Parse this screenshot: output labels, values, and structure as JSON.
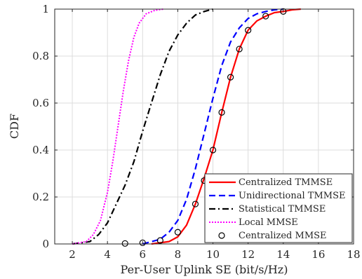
{
  "chart_data": {
    "type": "line",
    "xlabel": "Per-User Uplink SE (bit/s/Hz)",
    "ylabel": "CDF",
    "xlim": [
      1,
      18
    ],
    "ylim": [
      0,
      1
    ],
    "xticks": [
      2,
      4,
      6,
      8,
      10,
      12,
      14,
      16,
      18
    ],
    "yticks": [
      0,
      0.2,
      0.4,
      0.6,
      0.8,
      1
    ],
    "ytick_labels": [
      "0",
      "0.2",
      "0.4",
      "0.6",
      "0.8",
      "1"
    ],
    "grid": true,
    "legend_position": "bottom-right",
    "series": [
      {
        "name": "Centralized TMMSE",
        "color": "#ff0000",
        "dash": "solid",
        "points": [
          [
            6.5,
            0
          ],
          [
            7.5,
            0.01
          ],
          [
            8.0,
            0.03
          ],
          [
            8.5,
            0.08
          ],
          [
            9.0,
            0.17
          ],
          [
            9.5,
            0.28
          ],
          [
            10.0,
            0.4
          ],
          [
            10.5,
            0.56
          ],
          [
            11.0,
            0.71
          ],
          [
            11.5,
            0.83
          ],
          [
            12.0,
            0.91
          ],
          [
            12.5,
            0.95
          ],
          [
            13.0,
            0.97
          ],
          [
            13.5,
            0.985
          ],
          [
            14.0,
            0.99
          ],
          [
            14.5,
            0.997
          ],
          [
            15.0,
            1.0
          ]
        ]
      },
      {
        "name": "Unidirectional TMMSE",
        "color": "#0000ff",
        "dash": "dashed",
        "points": [
          [
            6.0,
            0
          ],
          [
            7.0,
            0.02
          ],
          [
            7.5,
            0.05
          ],
          [
            8.0,
            0.1
          ],
          [
            8.5,
            0.19
          ],
          [
            9.0,
            0.32
          ],
          [
            9.5,
            0.47
          ],
          [
            10.0,
            0.62
          ],
          [
            10.5,
            0.76
          ],
          [
            11.0,
            0.86
          ],
          [
            11.5,
            0.92
          ],
          [
            12.0,
            0.96
          ],
          [
            12.5,
            0.98
          ],
          [
            13.0,
            0.99
          ],
          [
            13.5,
            0.997
          ],
          [
            14.0,
            1.0
          ]
        ]
      },
      {
        "name": "Statistical TMMSE",
        "color": "#000000",
        "dash": "dashdot",
        "points": [
          [
            2.0,
            0
          ],
          [
            3.0,
            0.01
          ],
          [
            3.5,
            0.04
          ],
          [
            4.0,
            0.09
          ],
          [
            4.5,
            0.17
          ],
          [
            5.0,
            0.25
          ],
          [
            5.5,
            0.35
          ],
          [
            6.0,
            0.48
          ],
          [
            6.5,
            0.6
          ],
          [
            7.0,
            0.72
          ],
          [
            7.5,
            0.82
          ],
          [
            8.0,
            0.89
          ],
          [
            8.5,
            0.94
          ],
          [
            9.0,
            0.975
          ],
          [
            9.5,
            0.99
          ],
          [
            10.0,
            1.0
          ]
        ]
      },
      {
        "name": "Local MMSE",
        "color": "#ff00ff",
        "dash": "dotted",
        "points": [
          [
            2.0,
            0
          ],
          [
            2.8,
            0.01
          ],
          [
            3.2,
            0.04
          ],
          [
            3.6,
            0.1
          ],
          [
            4.0,
            0.22
          ],
          [
            4.3,
            0.35
          ],
          [
            4.6,
            0.5
          ],
          [
            4.9,
            0.65
          ],
          [
            5.2,
            0.78
          ],
          [
            5.5,
            0.88
          ],
          [
            5.8,
            0.94
          ],
          [
            6.2,
            0.98
          ],
          [
            6.7,
            0.995
          ],
          [
            7.2,
            1.0
          ]
        ]
      },
      {
        "name": "Centralized MMSE",
        "color": "#000000",
        "marker": "circle",
        "points": [
          [
            5,
            0.002
          ],
          [
            6,
            0.005
          ],
          [
            7,
            0.015
          ],
          [
            8,
            0.05
          ],
          [
            9,
            0.17
          ],
          [
            9.5,
            0.27
          ],
          [
            10,
            0.4
          ],
          [
            10.5,
            0.56
          ],
          [
            11,
            0.71
          ],
          [
            11.5,
            0.83
          ],
          [
            12,
            0.91
          ],
          [
            13,
            0.97
          ],
          [
            14,
            0.99
          ]
        ]
      }
    ]
  }
}
